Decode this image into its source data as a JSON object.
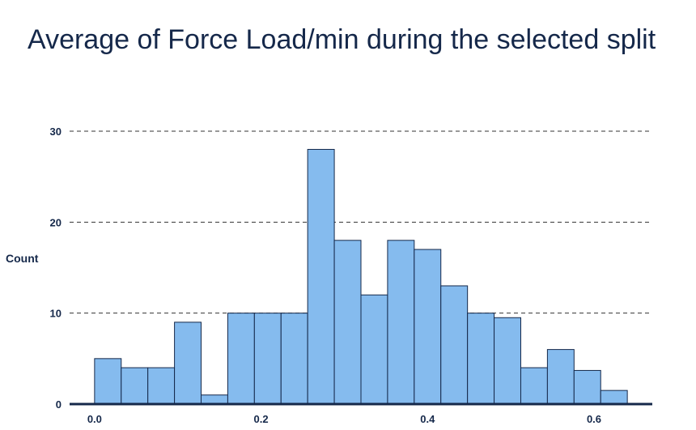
{
  "chart_data": {
    "type": "bar",
    "subtype": "histogram",
    "title": "Average of Force Load/min during the selected split",
    "xlabel": "",
    "ylabel": "Count",
    "bin_width": 0.032,
    "bin_start": 0.0,
    "values": [
      5,
      4,
      4,
      9,
      1,
      10,
      10,
      10,
      28,
      18,
      12,
      18,
      17,
      13,
      10,
      9.5,
      4,
      6,
      3.7,
      1.5
    ],
    "xticks": [
      0.0,
      0.2,
      0.4,
      0.6
    ],
    "xtick_labels": [
      "0.0",
      "0.2",
      "0.4",
      "0.6"
    ],
    "yticks": [
      0,
      10,
      20,
      30
    ],
    "ytick_labels": [
      "0",
      "10",
      "20",
      "30"
    ],
    "xlim": [
      -0.03,
      0.67
    ],
    "ylim": [
      0,
      30
    ],
    "grid": "horizontal-dashed",
    "legend": "none",
    "colors": {
      "bar": "#85bbee",
      "bar_edge": "#15284a",
      "text": "#15284a",
      "axis": "#15284a",
      "grid": "#333333"
    }
  }
}
